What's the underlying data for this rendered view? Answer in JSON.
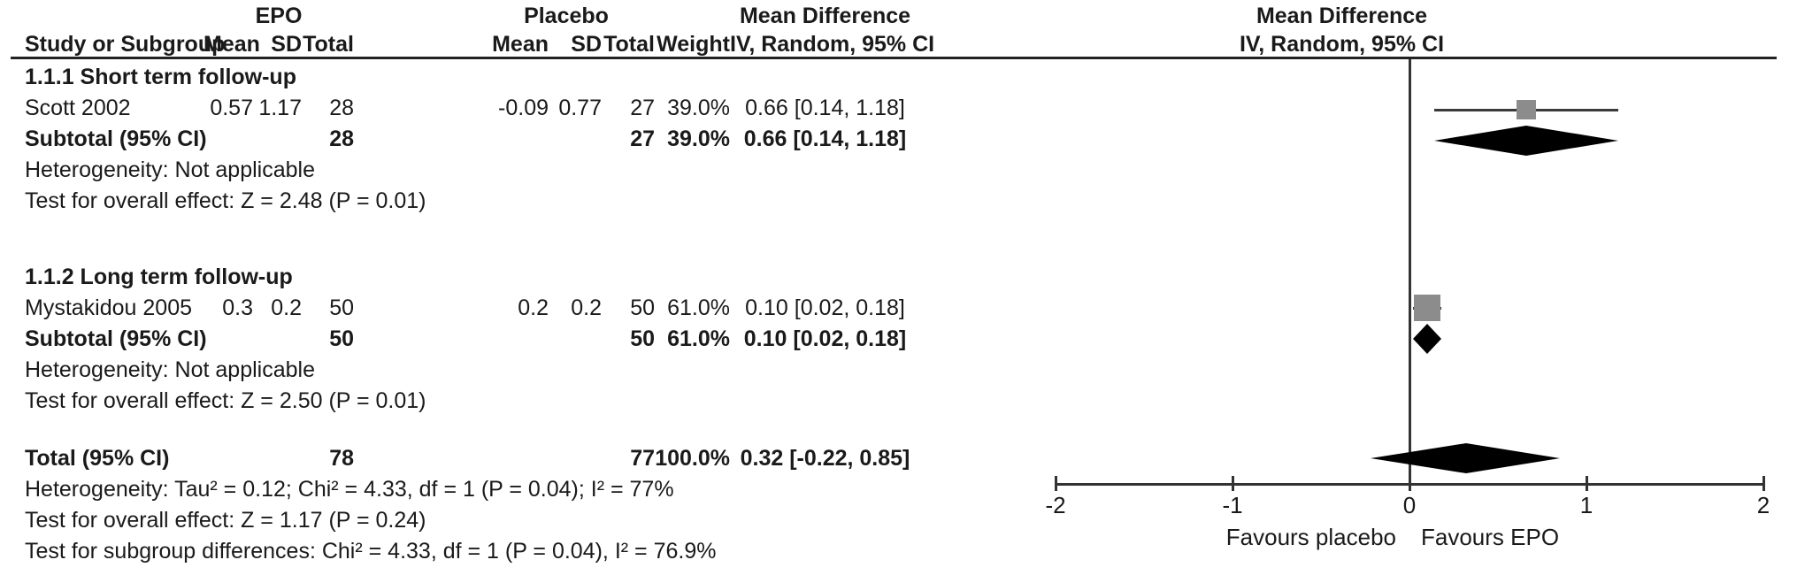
{
  "header": {
    "study_col": "Study or Subgroup",
    "group1": "EPO",
    "group2": "Placebo",
    "md_header_left": "Mean Difference",
    "md_header_right": "Mean Difference",
    "mean1": "Mean",
    "sd1": "SD",
    "total1": "Total",
    "mean2": "Mean",
    "sd2": "SD",
    "total2": "Total",
    "weight": "Weight",
    "ci_method_left": "IV, Random, 95% CI",
    "ci_method_right": "IV, Random, 95% CI"
  },
  "sections": [
    {
      "title": "1.1.1 Short term follow-up",
      "study": {
        "name": "Scott 2002",
        "mean1": "0.57",
        "sd1": "1.17",
        "total1": "28",
        "mean2": "-0.09",
        "sd2": "0.77",
        "total2": "27",
        "weight": "39.0%",
        "ci": "0.66 [0.14, 1.18]"
      },
      "subtotal": {
        "label": "Subtotal (95% CI)",
        "total1": "28",
        "total2": "27",
        "weight": "39.0%",
        "ci": "0.66 [0.14, 1.18]"
      },
      "heterogeneity": "Heterogeneity: Not applicable",
      "overall_effect": "Test for overall effect: Z = 2.48 (P = 0.01)"
    },
    {
      "title": "1.1.2 Long term follow-up",
      "study": {
        "name": "Mystakidou 2005",
        "mean1": "0.3",
        "sd1": "0.2",
        "total1": "50",
        "mean2": "0.2",
        "sd2": "0.2",
        "total2": "50",
        "weight": "61.0%",
        "ci": "0.10 [0.02, 0.18]"
      },
      "subtotal": {
        "label": "Subtotal (95% CI)",
        "total1": "50",
        "total2": "50",
        "weight": "61.0%",
        "ci": "0.10 [0.02, 0.18]"
      },
      "heterogeneity": "Heterogeneity: Not applicable",
      "overall_effect": "Test for overall effect: Z = 2.50 (P = 0.01)"
    }
  ],
  "total_row": {
    "label": "Total (95% CI)",
    "total1": "78",
    "total2": "77",
    "weight": "100.0%",
    "ci": "0.32 [-0.22, 0.85]"
  },
  "footer": {
    "heterogeneity": "Heterogeneity: Tau² = 0.12; Chi² = 4.33, df = 1 (P = 0.04); I² = 77%",
    "overall_effect": "Test for overall effect: Z = 1.17 (P = 0.24)",
    "subgroup_diff": "Test for subgroup differences: Chi² = 4.33, df = 1 (P = 0.04), I² = 76.9%"
  },
  "axis": {
    "tick_labels": [
      "-2",
      "-1",
      "0",
      "1",
      "2"
    ],
    "favours_left": "Favours placebo",
    "favours_right": "Favours EPO"
  },
  "colors": {
    "marker_square": "#8c8c8c",
    "diamond": "#000000",
    "axis_line": "#333333",
    "text": "#1a1a1a"
  },
  "chart_data": {
    "type": "scatter",
    "subtype": "forest_plot",
    "title": "Mean Difference, EPO vs Placebo",
    "effect_measure": "IV, Random, 95% CI",
    "x_axis": {
      "min": -2,
      "max": 2,
      "ticks": [
        -2,
        -1,
        0,
        1,
        2
      ],
      "label_left": "Favours placebo",
      "label_right": "Favours EPO"
    },
    "markers": [
      {
        "label": "Scott 2002",
        "kind": "study",
        "md": 0.66,
        "ci_low": 0.14,
        "ci_high": 1.18,
        "weight_pct": 39.0
      },
      {
        "label": "Subtotal (95% CI) Short term follow-up",
        "kind": "diamond",
        "md": 0.66,
        "ci_low": 0.14,
        "ci_high": 1.18,
        "weight_pct": 39.0
      },
      {
        "label": "Mystakidou 2005",
        "kind": "study",
        "md": 0.1,
        "ci_low": 0.02,
        "ci_high": 0.18,
        "weight_pct": 61.0
      },
      {
        "label": "Subtotal (95% CI) Long term follow-up",
        "kind": "diamond",
        "md": 0.1,
        "ci_low": 0.02,
        "ci_high": 0.18,
        "weight_pct": 61.0
      },
      {
        "label": "Total (95% CI)",
        "kind": "diamond",
        "md": 0.32,
        "ci_low": -0.22,
        "ci_high": 0.85,
        "weight_pct": 100.0
      }
    ]
  }
}
